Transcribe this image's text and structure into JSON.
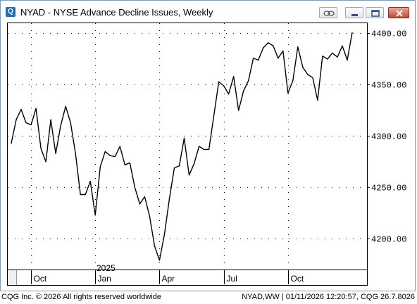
{
  "window": {
    "title": "NYAD - NYSE Advance Decline Issues, Weekly",
    "icons": [
      "link-icon",
      "minimize-icon",
      "restore-icon",
      "close-icon"
    ]
  },
  "footer": {
    "copyright": "CQG Inc. © 2026 All rights reserved worldwide",
    "status": "NYAD,WW | 01/11/2026 12:20:57, CQG 26.7.8026"
  },
  "chart_data": {
    "type": "line",
    "title": "NYAD - NYSE Advance Decline Issues, Weekly",
    "y_tick_labels": [
      "4400.00",
      "4350.00",
      "4300.00",
      "4250.00",
      "4200.00"
    ],
    "y_ticks": [
      4400,
      4350,
      4300,
      4250,
      4200
    ],
    "ylim": [
      4170,
      4410
    ],
    "x_tick_labels": [
      "Oct",
      "Jan",
      "Apr",
      "Jul",
      "Oct"
    ],
    "x_tick_index": [
      4,
      17,
      30,
      43,
      56
    ],
    "year_label": "2025",
    "year_label_index": 17,
    "grid": true,
    "series": [
      {
        "values": [
          4293,
          4316,
          4326,
          4313,
          4311,
          4327,
          4288,
          4275,
          4316,
          4283,
          4310,
          4329,
          4313,
          4283,
          4243,
          4243,
          4256,
          4223,
          4270,
          4285,
          4281,
          4280,
          4290,
          4272,
          4274,
          4250,
          4234,
          4241,
          4222,
          4193,
          4179,
          4204,
          4239,
          4269,
          4271,
          4298,
          4262,
          4273,
          4290,
          4287,
          4287,
          4320,
          4353,
          4349,
          4341,
          4358,
          4325,
          4344,
          4354,
          4376,
          4374,
          4386,
          4391,
          4388,
          4376,
          4383,
          4342,
          4354,
          4387,
          4367,
          4360,
          4357,
          4335,
          4378,
          4375,
          4381,
          4377,
          4388,
          4374,
          4401
        ]
      }
    ]
  }
}
